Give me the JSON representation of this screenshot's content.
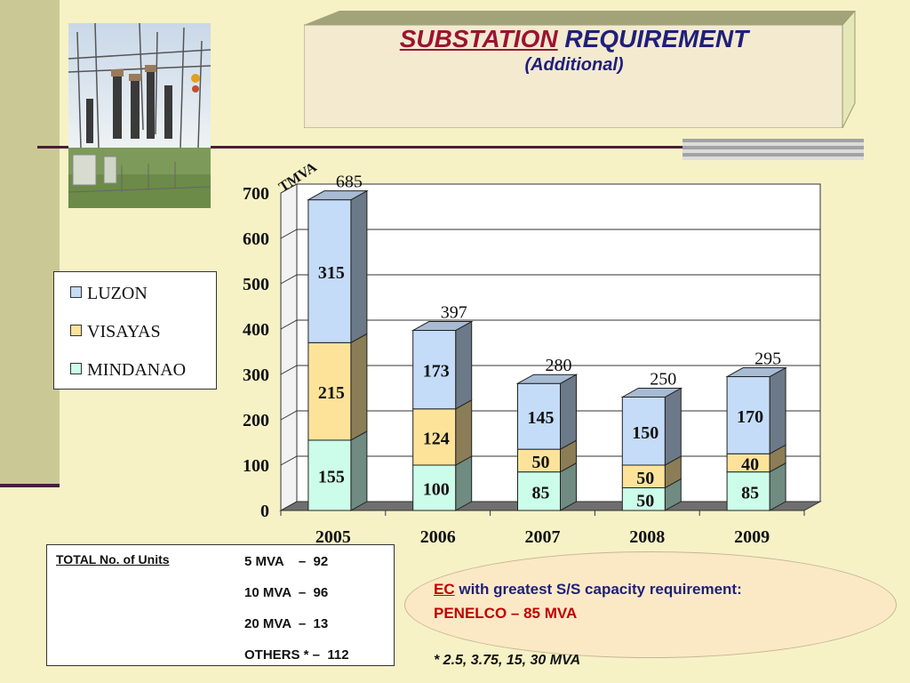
{
  "title": {
    "highlight": "SUBSTATION",
    "rest": "REQUIREMENT",
    "subtitle": "(Additional)"
  },
  "chart_data": {
    "type": "bar",
    "stacked": true,
    "unit_label": "TMVA",
    "categories": [
      "2005",
      "2006",
      "2007",
      "2008",
      "2009"
    ],
    "series": [
      {
        "name": "MINDANAO",
        "values": [
          155,
          100,
          85,
          50,
          85
        ],
        "color": "#ccfcea"
      },
      {
        "name": "VISAYAS",
        "values": [
          215,
          124,
          50,
          50,
          40
        ],
        "color": "#fde39a"
      },
      {
        "name": "LUZON",
        "values": [
          315,
          173,
          145,
          150,
          170
        ],
        "color": "#c4dcf8"
      }
    ],
    "totals": [
      685,
      397,
      280,
      250,
      295
    ],
    "ylim": [
      0,
      700
    ],
    "yticks": [
      "0",
      "100",
      "200",
      "300",
      "400",
      "500",
      "600",
      "700"
    ],
    "grid": true,
    "legend": [
      "LUZON",
      "VISAYAS",
      "MINDANAO"
    ]
  },
  "units": {
    "heading": "TOTAL No. of Units",
    "lines": [
      "5 MVA    –  92",
      "10 MVA  –  96",
      "20 MVA  –  13",
      "OTHERS * –  112"
    ]
  },
  "note": {
    "ec": "EC",
    "line1_rest": " with greatest S/S capacity requirement:",
    "line2": "PENELCO – 85 MVA",
    "line3": "* 2.5, 3.75, 15, 30 MVA"
  }
}
